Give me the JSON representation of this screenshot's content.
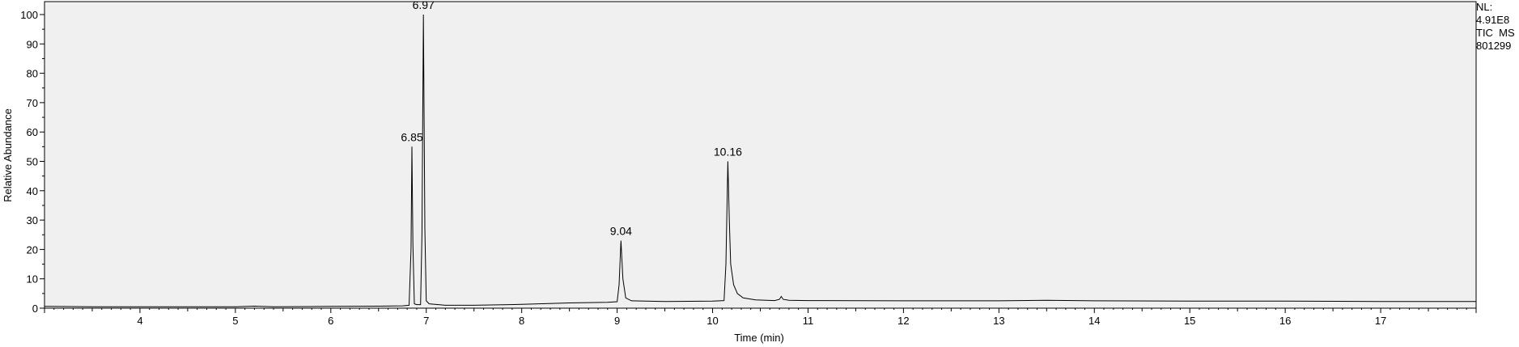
{
  "chart_data": {
    "type": "line",
    "xlabel": "Time (min)",
    "ylabel": "Relative Abundance",
    "xlim": [
      3.0,
      18.0
    ],
    "ylim": [
      0,
      100
    ],
    "x_ticks": [
      4,
      5,
      6,
      7,
      8,
      9,
      10,
      11,
      12,
      13,
      14,
      15,
      16,
      17
    ],
    "y_ticks": [
      0,
      10,
      20,
      30,
      40,
      50,
      60,
      70,
      80,
      90,
      100
    ],
    "info": {
      "nl_label": "NL:",
      "nl_value": "4.91E8",
      "scan_filter": "TIC  MS",
      "sample": "801299"
    },
    "peaks": [
      {
        "rt": 6.85,
        "label": "6.85",
        "height": 55
      },
      {
        "rt": 6.97,
        "label": "6.97",
        "height": 100
      },
      {
        "rt": 9.04,
        "label": "9.04",
        "height": 23
      },
      {
        "rt": 10.16,
        "label": "10.16",
        "height": 50
      }
    ],
    "series": [
      {
        "points": [
          [
            3.0,
            0.6
          ],
          [
            3.5,
            0.5
          ],
          [
            4.0,
            0.5
          ],
          [
            4.5,
            0.5
          ],
          [
            5.0,
            0.5
          ],
          [
            5.2,
            0.7
          ],
          [
            5.4,
            0.5
          ],
          [
            6.0,
            0.6
          ],
          [
            6.5,
            0.7
          ],
          [
            6.75,
            0.8
          ],
          [
            6.82,
            1.0
          ],
          [
            6.84,
            20
          ],
          [
            6.85,
            55
          ],
          [
            6.86,
            22
          ],
          [
            6.875,
            1.5
          ],
          [
            6.9,
            1.2
          ],
          [
            6.94,
            1.2
          ],
          [
            6.955,
            25
          ],
          [
            6.97,
            100
          ],
          [
            6.985,
            27
          ],
          [
            7.0,
            2.5
          ],
          [
            7.03,
            1.5
          ],
          [
            7.2,
            1.0
          ],
          [
            7.5,
            1.0
          ],
          [
            8.0,
            1.3
          ],
          [
            8.5,
            1.8
          ],
          [
            8.9,
            2.0
          ],
          [
            9.0,
            2.2
          ],
          [
            9.02,
            8
          ],
          [
            9.04,
            23
          ],
          [
            9.06,
            10
          ],
          [
            9.09,
            3.5
          ],
          [
            9.15,
            2.5
          ],
          [
            9.5,
            2.3
          ],
          [
            10.0,
            2.4
          ],
          [
            10.12,
            2.6
          ],
          [
            10.14,
            15
          ],
          [
            10.16,
            50
          ],
          [
            10.175,
            30
          ],
          [
            10.19,
            15
          ],
          [
            10.22,
            8
          ],
          [
            10.26,
            5
          ],
          [
            10.32,
            3.5
          ],
          [
            10.45,
            2.8
          ],
          [
            10.65,
            2.6
          ],
          [
            10.7,
            3.0
          ],
          [
            10.72,
            4.0
          ],
          [
            10.74,
            3.0
          ],
          [
            10.8,
            2.7
          ],
          [
            11.0,
            2.6
          ],
          [
            12.0,
            2.5
          ],
          [
            13.0,
            2.5
          ],
          [
            13.5,
            2.7
          ],
          [
            14.0,
            2.5
          ],
          [
            15.0,
            2.4
          ],
          [
            16.0,
            2.4
          ],
          [
            17.0,
            2.3
          ],
          [
            18.0,
            2.3
          ]
        ]
      }
    ]
  }
}
